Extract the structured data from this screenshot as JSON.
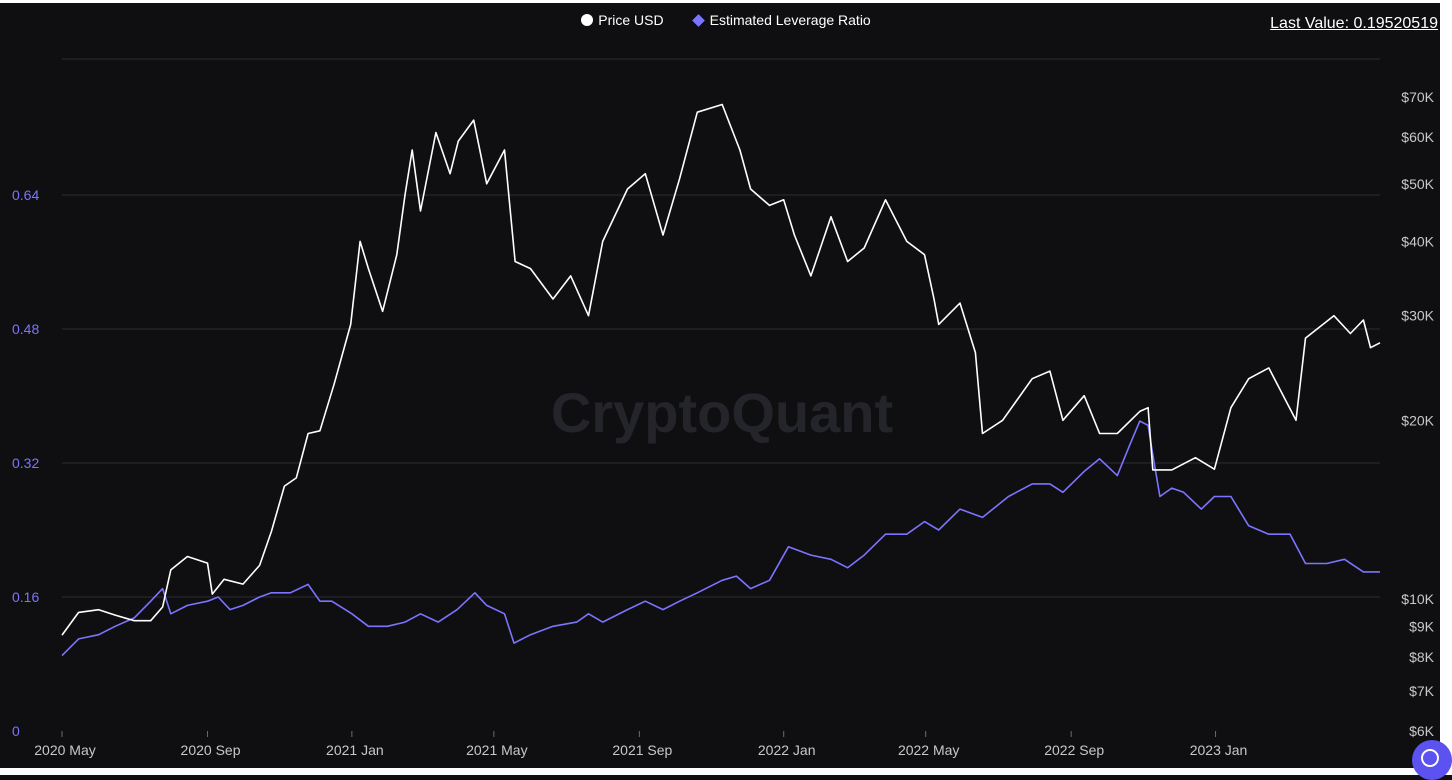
{
  "legend": {
    "price_label": "Price USD",
    "leverage_label": "Estimated Leverage Ratio"
  },
  "last_value_text": "Last Value: 0.19520519",
  "watermark": "CryptoQuant",
  "colors": {
    "background": "#0f0f12",
    "price_line": "#ffffff",
    "leverage_line": "#7b74ff",
    "left_axis_text": "#7b74ff",
    "right_axis_text": "#c8c8cc",
    "grid": "#2c2c33",
    "watermark": "#24242b"
  },
  "chart_data": {
    "type": "line",
    "x_ticks": [
      "2020 May",
      "2020 Sep",
      "2021 Jan",
      "2021 May",
      "2021 Sep",
      "2022 Jan",
      "2022 May",
      "2022 Sep",
      "2023 Jan"
    ],
    "y_left": {
      "ticks": [
        "0",
        "0.16",
        "0.32",
        "0.48",
        "0.64"
      ],
      "range": [
        0,
        0.64
      ],
      "scale": "linear"
    },
    "y_right": {
      "ticks": [
        "$6K",
        "$7K",
        "$8K",
        "$9K",
        "$10K",
        "$20K",
        "$30K",
        "$40K",
        "$50K",
        "$60K",
        "$70K"
      ],
      "range": [
        6000,
        70000
      ],
      "scale": "log"
    },
    "x_range": [
      "2020-05-01",
      "2023-05-20"
    ],
    "grid": true,
    "legend_position": "top-center",
    "series": [
      {
        "name": "Price USD",
        "axis": "right",
        "points": [
          [
            "2020-05-01",
            8700
          ],
          [
            "2020-05-15",
            9500
          ],
          [
            "2020-06-01",
            9600
          ],
          [
            "2020-06-15",
            9400
          ],
          [
            "2020-07-01",
            9200
          ],
          [
            "2020-07-15",
            9200
          ],
          [
            "2020-07-25",
            9700
          ],
          [
            "2020-08-01",
            11200
          ],
          [
            "2020-08-15",
            11800
          ],
          [
            "2020-09-01",
            11500
          ],
          [
            "2020-09-05",
            10200
          ],
          [
            "2020-09-15",
            10800
          ],
          [
            "2020-10-01",
            10600
          ],
          [
            "2020-10-15",
            11400
          ],
          [
            "2020-10-25",
            13000
          ],
          [
            "2020-11-05",
            15500
          ],
          [
            "2020-11-15",
            16000
          ],
          [
            "2020-11-25",
            19000
          ],
          [
            "2020-12-05",
            19200
          ],
          [
            "2020-12-17",
            23000
          ],
          [
            "2020-12-31",
            29000
          ],
          [
            "2021-01-08",
            40000
          ],
          [
            "2021-01-15",
            36000
          ],
          [
            "2021-01-27",
            30500
          ],
          [
            "2021-02-08",
            38000
          ],
          [
            "2021-02-15",
            48000
          ],
          [
            "2021-02-21",
            57000
          ],
          [
            "2021-02-28",
            45000
          ],
          [
            "2021-03-13",
            61000
          ],
          [
            "2021-03-25",
            52000
          ],
          [
            "2021-04-01",
            59000
          ],
          [
            "2021-04-14",
            64000
          ],
          [
            "2021-04-25",
            50000
          ],
          [
            "2021-05-10",
            57000
          ],
          [
            "2021-05-19",
            37000
          ],
          [
            "2021-06-01",
            36000
          ],
          [
            "2021-06-20",
            32000
          ],
          [
            "2021-07-05",
            35000
          ],
          [
            "2021-07-20",
            30000
          ],
          [
            "2021-08-01",
            40000
          ],
          [
            "2021-08-22",
            49000
          ],
          [
            "2021-09-06",
            52000
          ],
          [
            "2021-09-21",
            41000
          ],
          [
            "2021-10-05",
            51000
          ],
          [
            "2021-10-20",
            66000
          ],
          [
            "2021-11-10",
            68000
          ],
          [
            "2021-11-25",
            57000
          ],
          [
            "2021-12-04",
            49000
          ],
          [
            "2021-12-20",
            46000
          ],
          [
            "2022-01-01",
            47000
          ],
          [
            "2022-01-10",
            41000
          ],
          [
            "2022-01-24",
            35000
          ],
          [
            "2022-02-10",
            44000
          ],
          [
            "2022-02-24",
            37000
          ],
          [
            "2022-03-10",
            39000
          ],
          [
            "2022-03-28",
            47000
          ],
          [
            "2022-04-15",
            40000
          ],
          [
            "2022-04-30",
            38000
          ],
          [
            "2022-05-08",
            32000
          ],
          [
            "2022-05-12",
            29000
          ],
          [
            "2022-05-30",
            31500
          ],
          [
            "2022-06-12",
            26000
          ],
          [
            "2022-06-18",
            19000
          ],
          [
            "2022-07-05",
            20000
          ],
          [
            "2022-07-30",
            23500
          ],
          [
            "2022-08-14",
            24200
          ],
          [
            "2022-08-25",
            20000
          ],
          [
            "2022-09-12",
            22000
          ],
          [
            "2022-09-25",
            19000
          ],
          [
            "2022-10-10",
            19000
          ],
          [
            "2022-10-29",
            20700
          ],
          [
            "2022-11-05",
            21000
          ],
          [
            "2022-11-09",
            16500
          ],
          [
            "2022-11-25",
            16500
          ],
          [
            "2022-12-15",
            17300
          ],
          [
            "2022-12-31",
            16550
          ],
          [
            "2023-01-14",
            21000
          ],
          [
            "2023-01-29",
            23500
          ],
          [
            "2023-02-15",
            24500
          ],
          [
            "2023-03-10",
            20000
          ],
          [
            "2023-03-18",
            27500
          ],
          [
            "2023-04-11",
            30000
          ],
          [
            "2023-04-25",
            28000
          ],
          [
            "2023-05-06",
            29500
          ],
          [
            "2023-05-12",
            26500
          ],
          [
            "2023-05-20",
            27000
          ]
        ]
      },
      {
        "name": "Estimated Leverage Ratio",
        "axis": "left",
        "points": [
          [
            "2020-05-01",
            0.09
          ],
          [
            "2020-05-15",
            0.11
          ],
          [
            "2020-06-01",
            0.115
          ],
          [
            "2020-06-15",
            0.125
          ],
          [
            "2020-07-01",
            0.135
          ],
          [
            "2020-07-15",
            0.155
          ],
          [
            "2020-07-25",
            0.17
          ],
          [
            "2020-08-01",
            0.14
          ],
          [
            "2020-08-15",
            0.15
          ],
          [
            "2020-09-01",
            0.155
          ],
          [
            "2020-09-10",
            0.16
          ],
          [
            "2020-09-20",
            0.145
          ],
          [
            "2020-10-01",
            0.15
          ],
          [
            "2020-10-15",
            0.16
          ],
          [
            "2020-10-25",
            0.165
          ],
          [
            "2020-11-10",
            0.165
          ],
          [
            "2020-11-25",
            0.175
          ],
          [
            "2020-12-05",
            0.155
          ],
          [
            "2020-12-15",
            0.155
          ],
          [
            "2021-01-01",
            0.14
          ],
          [
            "2021-01-15",
            0.125
          ],
          [
            "2021-01-31",
            0.125
          ],
          [
            "2021-02-15",
            0.13
          ],
          [
            "2021-02-28",
            0.14
          ],
          [
            "2021-03-15",
            0.13
          ],
          [
            "2021-03-31",
            0.145
          ],
          [
            "2021-04-15",
            0.165
          ],
          [
            "2021-04-25",
            0.15
          ],
          [
            "2021-05-10",
            0.14
          ],
          [
            "2021-05-18",
            0.105
          ],
          [
            "2021-06-01",
            0.115
          ],
          [
            "2021-06-20",
            0.125
          ],
          [
            "2021-07-10",
            0.13
          ],
          [
            "2021-07-20",
            0.14
          ],
          [
            "2021-08-01",
            0.13
          ],
          [
            "2021-08-22",
            0.145
          ],
          [
            "2021-09-06",
            0.155
          ],
          [
            "2021-09-21",
            0.145
          ],
          [
            "2021-10-05",
            0.155
          ],
          [
            "2021-10-20",
            0.165
          ],
          [
            "2021-11-10",
            0.18
          ],
          [
            "2021-11-22",
            0.185
          ],
          [
            "2021-12-04",
            0.17
          ],
          [
            "2021-12-20",
            0.18
          ],
          [
            "2022-01-05",
            0.22
          ],
          [
            "2022-01-24",
            0.21
          ],
          [
            "2022-02-10",
            0.205
          ],
          [
            "2022-02-24",
            0.195
          ],
          [
            "2022-03-10",
            0.21
          ],
          [
            "2022-03-28",
            0.235
          ],
          [
            "2022-04-15",
            0.235
          ],
          [
            "2022-04-30",
            0.25
          ],
          [
            "2022-05-12",
            0.24
          ],
          [
            "2022-05-30",
            0.265
          ],
          [
            "2022-06-18",
            0.255
          ],
          [
            "2022-07-10",
            0.28
          ],
          [
            "2022-07-30",
            0.295
          ],
          [
            "2022-08-14",
            0.295
          ],
          [
            "2022-08-25",
            0.285
          ],
          [
            "2022-09-12",
            0.31
          ],
          [
            "2022-09-25",
            0.325
          ],
          [
            "2022-10-10",
            0.305
          ],
          [
            "2022-10-20",
            0.34
          ],
          [
            "2022-10-29",
            0.37
          ],
          [
            "2022-11-05",
            0.365
          ],
          [
            "2022-11-09",
            0.33
          ],
          [
            "2022-11-15",
            0.28
          ],
          [
            "2022-11-25",
            0.29
          ],
          [
            "2022-12-05",
            0.285
          ],
          [
            "2022-12-20",
            0.265
          ],
          [
            "2022-12-31",
            0.28
          ],
          [
            "2023-01-14",
            0.28
          ],
          [
            "2023-01-29",
            0.245
          ],
          [
            "2023-02-15",
            0.235
          ],
          [
            "2023-03-05",
            0.235
          ],
          [
            "2023-03-18",
            0.2
          ],
          [
            "2023-04-05",
            0.2
          ],
          [
            "2023-04-20",
            0.205
          ],
          [
            "2023-05-06",
            0.19
          ],
          [
            "2023-05-20",
            0.19
          ]
        ]
      }
    ]
  }
}
